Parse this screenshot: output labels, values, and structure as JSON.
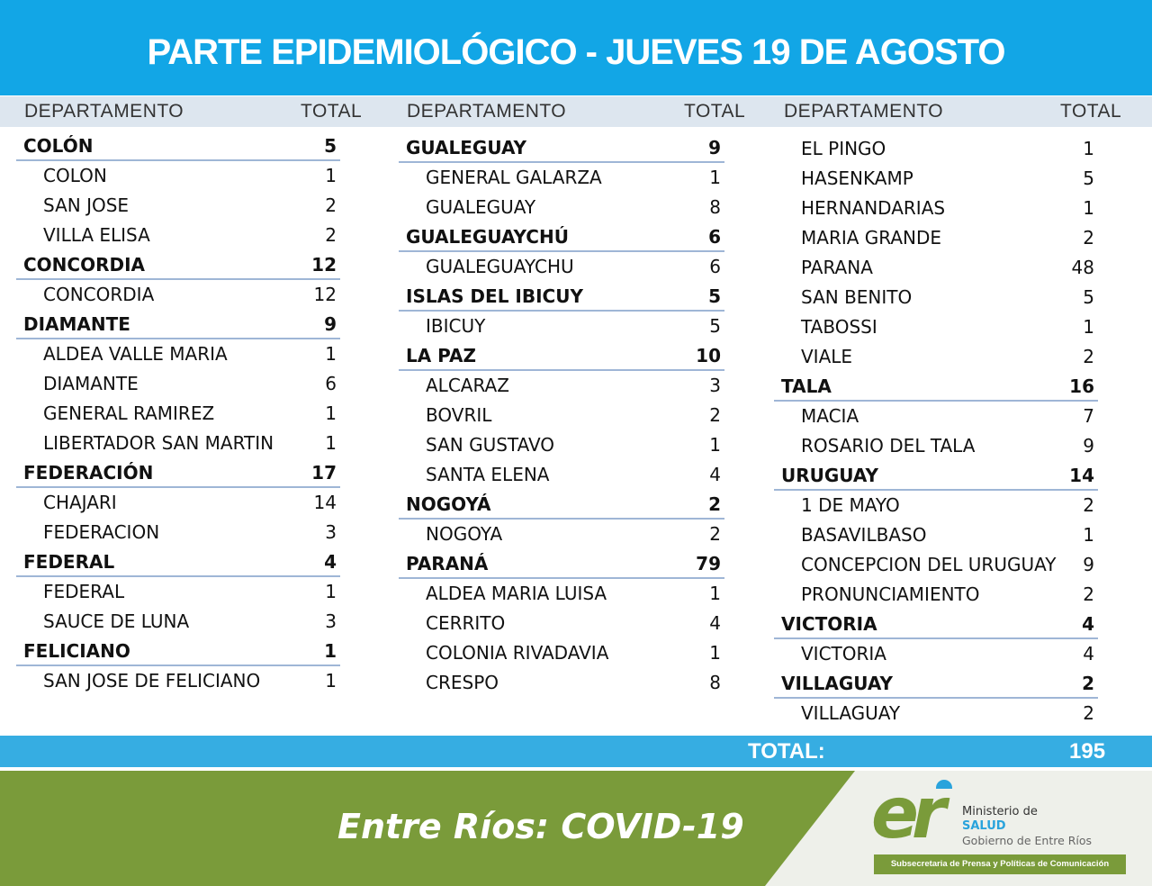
{
  "title": "PARTE EPIDEMIOLÓGICO - JUEVES 19 DE AGOSTO",
  "headers": {
    "dept": "DEPARTAMENTO",
    "total": "TOTAL"
  },
  "columns": [
    [
      {
        "n": "COLÓN",
        "t": "5",
        "g": 1
      },
      {
        "n": "COLON",
        "t": "1"
      },
      {
        "n": "SAN JOSE",
        "t": "2"
      },
      {
        "n": "VILLA ELISA",
        "t": "2"
      },
      {
        "n": "CONCORDIA",
        "t": "12",
        "g": 1
      },
      {
        "n": "CONCORDIA",
        "t": "12"
      },
      {
        "n": "DIAMANTE",
        "t": "9",
        "g": 1
      },
      {
        "n": "ALDEA VALLE MARIA",
        "t": "1"
      },
      {
        "n": "DIAMANTE",
        "t": "6"
      },
      {
        "n": "GENERAL RAMIREZ",
        "t": "1"
      },
      {
        "n": "LIBERTADOR SAN MARTIN",
        "t": "1"
      },
      {
        "n": "FEDERACIÓN",
        "t": "17",
        "g": 1
      },
      {
        "n": "CHAJARI",
        "t": "14"
      },
      {
        "n": "FEDERACION",
        "t": "3"
      },
      {
        "n": "FEDERAL",
        "t": "4",
        "g": 1
      },
      {
        "n": "FEDERAL",
        "t": "1"
      },
      {
        "n": "SAUCE DE LUNA",
        "t": "3"
      },
      {
        "n": "FELICIANO",
        "t": "1",
        "g": 1
      },
      {
        "n": "SAN JOSE DE FELICIANO",
        "t": "1"
      }
    ],
    [
      {
        "n": "GUALEGUAY",
        "t": "9",
        "g": 1
      },
      {
        "n": "GENERAL GALARZA",
        "t": "1"
      },
      {
        "n": "GUALEGUAY",
        "t": "8"
      },
      {
        "n": "GUALEGUAYCHÚ",
        "t": "6",
        "g": 1
      },
      {
        "n": "GUALEGUAYCHU",
        "t": "6"
      },
      {
        "n": "ISLAS DEL IBICUY",
        "t": "5",
        "g": 1
      },
      {
        "n": "IBICUY",
        "t": "5"
      },
      {
        "n": "LA PAZ",
        "t": "10",
        "g": 1
      },
      {
        "n": "ALCARAZ",
        "t": "3"
      },
      {
        "n": "BOVRIL",
        "t": "2"
      },
      {
        "n": "SAN GUSTAVO",
        "t": "1"
      },
      {
        "n": "SANTA ELENA",
        "t": "4"
      },
      {
        "n": "NOGOYÁ",
        "t": "2",
        "g": 1
      },
      {
        "n": "NOGOYA",
        "t": "2"
      },
      {
        "n": "PARANÁ",
        "t": "79",
        "g": 1
      },
      {
        "n": "ALDEA MARIA LUISA",
        "t": "1"
      },
      {
        "n": "CERRITO",
        "t": "4"
      },
      {
        "n": "COLONIA RIVADAVIA",
        "t": "1"
      },
      {
        "n": "CRESPO",
        "t": "8"
      }
    ],
    [
      {
        "n": "EL PINGO",
        "t": "1"
      },
      {
        "n": "HASENKAMP",
        "t": "5"
      },
      {
        "n": "HERNANDARIAS",
        "t": "1"
      },
      {
        "n": "MARIA GRANDE",
        "t": "2"
      },
      {
        "n": "PARANA",
        "t": "48"
      },
      {
        "n": "SAN BENITO",
        "t": "5"
      },
      {
        "n": "TABOSSI",
        "t": "1"
      },
      {
        "n": "VIALE",
        "t": "2"
      },
      {
        "n": "TALA",
        "t": "16",
        "g": 1
      },
      {
        "n": "MACIA",
        "t": "7"
      },
      {
        "n": "ROSARIO DEL TALA",
        "t": "9"
      },
      {
        "n": "URUGUAY",
        "t": "14",
        "g": 1
      },
      {
        "n": "1 DE MAYO",
        "t": "2"
      },
      {
        "n": "BASAVILBASO",
        "t": "1"
      },
      {
        "n": "CONCEPCION DEL URUGUAY",
        "t": "9"
      },
      {
        "n": "PRONUNCIAMIENTO",
        "t": "2"
      },
      {
        "n": "VICTORIA",
        "t": "4",
        "g": 1
      },
      {
        "n": "VICTORIA",
        "t": "4"
      },
      {
        "n": "VILLAGUAY",
        "t": "2",
        "g": 1
      },
      {
        "n": "VILLAGUAY",
        "t": "2"
      }
    ]
  ],
  "total": {
    "label": "TOTAL:",
    "value": "195"
  },
  "footer": {
    "slogan": "Entre Ríos: COVID-19",
    "logo_letters": "er",
    "ministry": "Ministerio de",
    "salud": "SALUD",
    "gov": "Gobierno de Entre Ríos",
    "sub": "Subsecretaria de Prensa y Políticas de Comunicación"
  },
  "colors": {
    "blue": "#12a6e6",
    "green": "#7a9b3a"
  }
}
